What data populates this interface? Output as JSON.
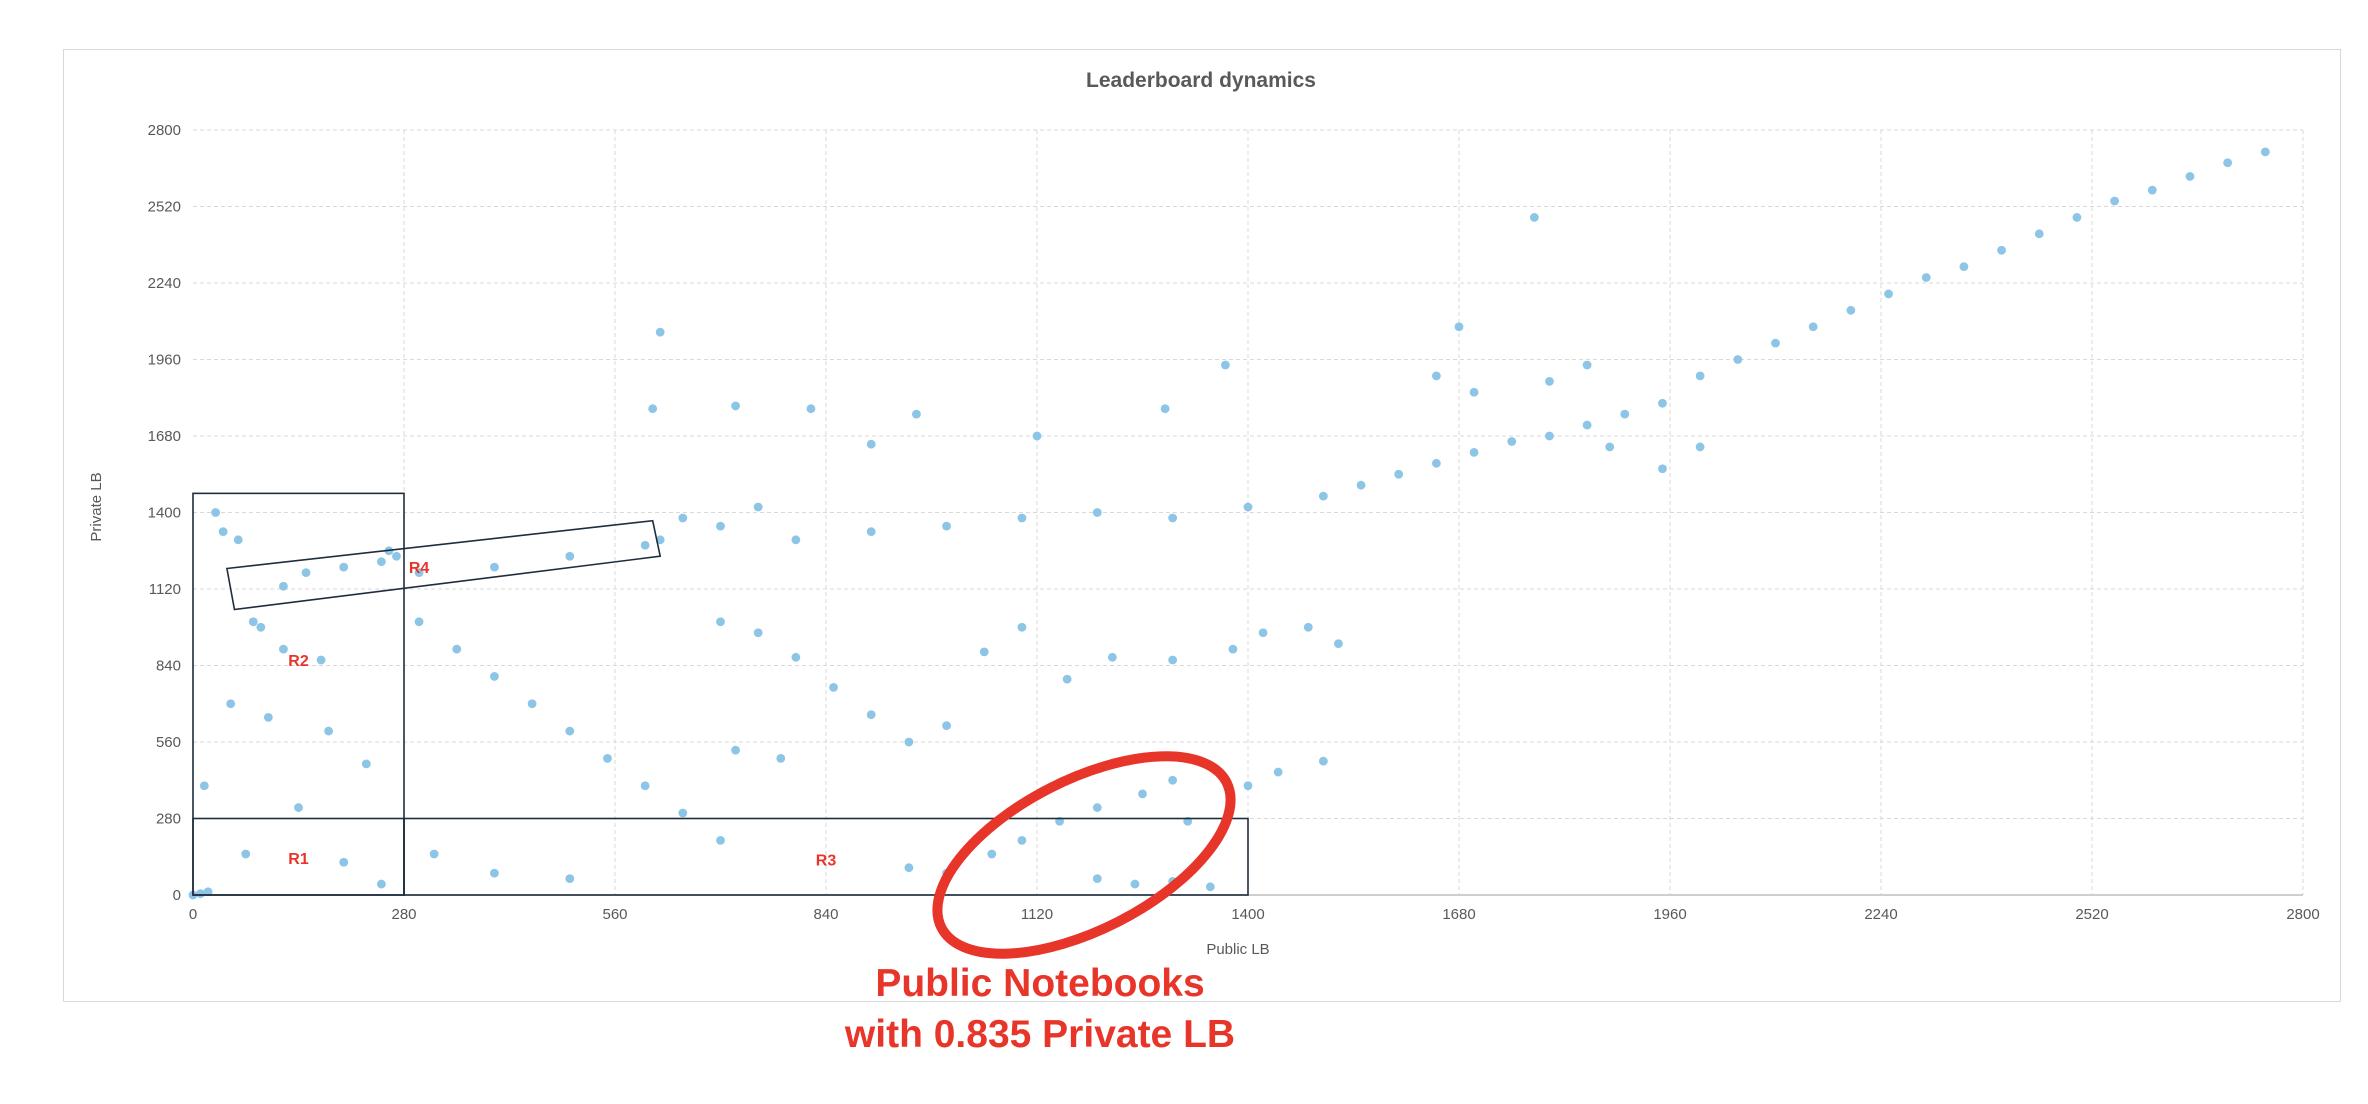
{
  "colors": {
    "points": "#8cc5e6",
    "grid": "#d9d9d9",
    "axis": "#bfbfbf",
    "text": "#595959",
    "annotation": "#e8352a",
    "boxes": "#1f2d3d"
  },
  "chart_data": {
    "type": "scatter",
    "title": "Leaderboard dynamics",
    "xlabel": "Public LB",
    "ylabel": "Private LB",
    "xlim": [
      0,
      2800
    ],
    "ylim": [
      0,
      2800
    ],
    "xticks": [
      0,
      280,
      560,
      840,
      1120,
      1400,
      1680,
      1960,
      2240,
      2520,
      2800
    ],
    "yticks": [
      0,
      280,
      560,
      840,
      1120,
      1400,
      1680,
      1960,
      2240,
      2520,
      2800
    ],
    "grid": true,
    "legend": "none",
    "series": [
      {
        "note_points": "approximately 2800 points; each point plots a team's Public LB rank (x) against its Private LB rank (y)",
        "points": [
          [
            0,
            0
          ],
          [
            10,
            5
          ],
          [
            20,
            12
          ],
          [
            15,
            400
          ],
          [
            30,
            1400
          ],
          [
            40,
            1330
          ],
          [
            60,
            1300
          ],
          [
            80,
            1000
          ],
          [
            90,
            980
          ],
          [
            120,
            900
          ],
          [
            150,
            1180
          ],
          [
            200,
            1200
          ],
          [
            250,
            1220
          ],
          [
            270,
            1240
          ],
          [
            50,
            700
          ],
          [
            100,
            650
          ],
          [
            180,
            600
          ],
          [
            230,
            480
          ],
          [
            140,
            320
          ],
          [
            200,
            120
          ],
          [
            250,
            40
          ],
          [
            70,
            150
          ],
          [
            170,
            860
          ],
          [
            120,
            1130
          ],
          [
            260,
            1260
          ],
          [
            300,
            1000
          ],
          [
            350,
            900
          ],
          [
            400,
            800
          ],
          [
            450,
            700
          ],
          [
            500,
            600
          ],
          [
            550,
            500
          ],
          [
            600,
            400
          ],
          [
            650,
            300
          ],
          [
            700,
            200
          ],
          [
            300,
            1180
          ],
          [
            400,
            1200
          ],
          [
            500,
            1240
          ],
          [
            600,
            1280
          ],
          [
            320,
            150
          ],
          [
            400,
            80
          ],
          [
            500,
            60
          ],
          [
            620,
            1300
          ],
          [
            650,
            1380
          ],
          [
            700,
            1350
          ],
          [
            750,
            1420
          ],
          [
            620,
            2060
          ],
          [
            610,
            1780
          ],
          [
            720,
            1790
          ],
          [
            820,
            1780
          ],
          [
            900,
            1650
          ],
          [
            960,
            1760
          ],
          [
            1120,
            1680
          ],
          [
            1290,
            1780
          ],
          [
            1370,
            1940
          ],
          [
            1680,
            2080
          ],
          [
            1780,
            2480
          ],
          [
            700,
            1000
          ],
          [
            750,
            960
          ],
          [
            800,
            870
          ],
          [
            850,
            760
          ],
          [
            900,
            660
          ],
          [
            950,
            560
          ],
          [
            720,
            530
          ],
          [
            780,
            500
          ],
          [
            1000,
            620
          ],
          [
            1050,
            890
          ],
          [
            1100,
            980
          ],
          [
            1160,
            790
          ],
          [
            1220,
            870
          ],
          [
            1300,
            860
          ],
          [
            1380,
            900
          ],
          [
            1420,
            960
          ],
          [
            1480,
            980
          ],
          [
            1520,
            920
          ],
          [
            950,
            100
          ],
          [
            1000,
            80
          ],
          [
            1060,
            150
          ],
          [
            1100,
            200
          ],
          [
            1150,
            270
          ],
          [
            1200,
            320
          ],
          [
            1260,
            370
          ],
          [
            1300,
            420
          ],
          [
            1320,
            270
          ],
          [
            1350,
            30
          ],
          [
            1300,
            50
          ],
          [
            1250,
            40
          ],
          [
            1200,
            60
          ],
          [
            1400,
            400
          ],
          [
            1440,
            450
          ],
          [
            1500,
            490
          ],
          [
            800,
            1300
          ],
          [
            900,
            1330
          ],
          [
            1000,
            1350
          ],
          [
            1100,
            1380
          ],
          [
            1200,
            1400
          ],
          [
            1300,
            1380
          ],
          [
            1400,
            1420
          ],
          [
            1500,
            1460
          ],
          [
            1550,
            1500
          ],
          [
            1600,
            1540
          ],
          [
            1650,
            1580
          ],
          [
            1700,
            1620
          ],
          [
            1750,
            1660
          ],
          [
            1800,
            1680
          ],
          [
            1850,
            1720
          ],
          [
            1900,
            1760
          ],
          [
            1950,
            1800
          ],
          [
            2000,
            1900
          ],
          [
            2050,
            1960
          ],
          [
            2100,
            2020
          ],
          [
            2150,
            2080
          ],
          [
            2200,
            2140
          ],
          [
            2250,
            2200
          ],
          [
            2300,
            2260
          ],
          [
            2350,
            2300
          ],
          [
            2400,
            2360
          ],
          [
            2450,
            2420
          ],
          [
            2500,
            2480
          ],
          [
            2550,
            2540
          ],
          [
            2600,
            2580
          ],
          [
            2650,
            2630
          ],
          [
            2700,
            2680
          ],
          [
            2750,
            2720
          ],
          [
            1880,
            1640
          ],
          [
            1950,
            1560
          ],
          [
            2000,
            1640
          ],
          [
            1800,
            1880
          ],
          [
            1850,
            1940
          ],
          [
            1700,
            1840
          ],
          [
            1650,
            1900
          ]
        ]
      }
    ],
    "annotations": {
      "regions": [
        {
          "label": "R1",
          "x_range": [
            0,
            280
          ],
          "y_range": [
            0,
            280
          ]
        },
        {
          "label": "R2",
          "x_range": [
            0,
            280
          ],
          "y_range": [
            0,
            1470
          ]
        },
        {
          "label": "R3",
          "x_range": [
            280,
            1400
          ],
          "y_range": [
            0,
            280
          ]
        },
        {
          "label": "R4",
          "x_range": [
            50,
            620
          ],
          "y_range": [
            1050,
            1360
          ]
        }
      ],
      "callout": [
        "Public Notebooks",
        "with 0.835 Private LB"
      ]
    }
  }
}
